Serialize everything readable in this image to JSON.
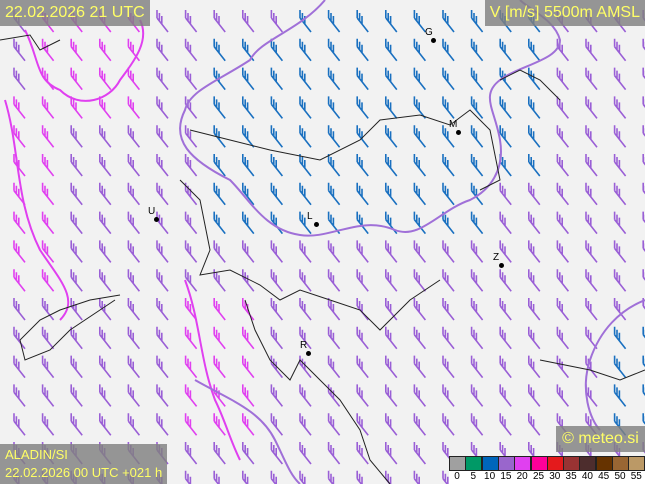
{
  "header": {
    "valid_time": "22.02.2026 21 UTC",
    "parameter": "V [m/s] 5500m AMSL"
  },
  "footer": {
    "model": "ALADIN/SI",
    "run": "22.02.2026 00 UTC +021 h",
    "copyright": "© meteo.si"
  },
  "legend": {
    "ticks": [
      "0",
      "5",
      "10",
      "15",
      "20",
      "25",
      "30",
      "35",
      "40",
      "45",
      "50",
      "55"
    ],
    "colors": [
      "#a0a0a0",
      "#009966",
      "#0066bb",
      "#9966cc",
      "#e040f0",
      "#ff0099",
      "#e41a1c",
      "#993333",
      "#4d2d2d",
      "#663300",
      "#996633",
      "#bb9966"
    ]
  },
  "barb_colors": {
    "blue": "#1a70c0",
    "purple": "#9a5fd6",
    "magenta": "#e040f0"
  },
  "cities": [
    {
      "label": "G"
    },
    {
      "label": "M"
    },
    {
      "label": "U"
    },
    {
      "label": "L"
    },
    {
      "label": "Z"
    },
    {
      "label": "R"
    }
  ]
}
